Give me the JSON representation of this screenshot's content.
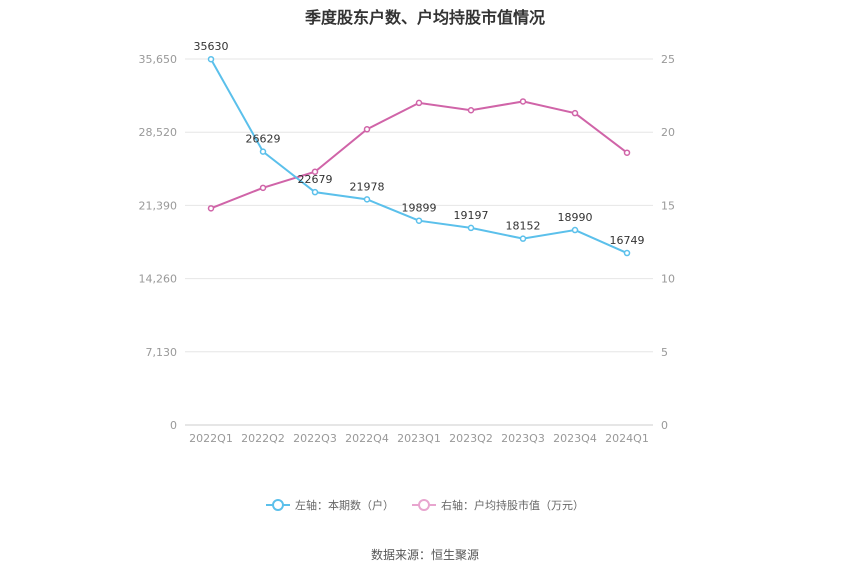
{
  "title": "季度股东户数、户均持股市值情况",
  "source": "数据来源：恒生聚源",
  "colors": {
    "left_series": "#5bc0eb",
    "right_series": "#d064a8",
    "grid": "#e6e6e6",
    "axis_text": "#999999"
  },
  "chart_data": {
    "type": "line",
    "categories": [
      "2022Q1",
      "2022Q2",
      "2022Q3",
      "2022Q4",
      "2023Q1",
      "2023Q2",
      "2023Q3",
      "2023Q4",
      "2024Q1"
    ],
    "y_left": {
      "ylim": [
        0,
        35650
      ],
      "ticks": [
        "0",
        "7,130",
        "14,260",
        "21,390",
        "28,520",
        "35,650"
      ]
    },
    "y_right": {
      "ylim": [
        0,
        25
      ],
      "ticks": [
        "0",
        "5",
        "10",
        "15",
        "20",
        "25"
      ]
    },
    "grid": true,
    "legend_position": "bottom",
    "series": [
      {
        "name": "左轴：本期数（户）",
        "axis": "left",
        "values": [
          35630,
          26629,
          22679,
          21978,
          19899,
          19197,
          18152,
          18990,
          16749
        ],
        "labels": [
          "35630",
          "26629",
          "22679",
          "21978",
          "19899",
          "19197",
          "18152",
          "18990",
          "16749"
        ]
      },
      {
        "name": "右轴：户均持股市值（万元）",
        "axis": "right",
        "values": [
          14.8,
          16.2,
          17.3,
          20.2,
          22.0,
          21.5,
          22.1,
          21.3,
          18.6
        ]
      }
    ]
  }
}
